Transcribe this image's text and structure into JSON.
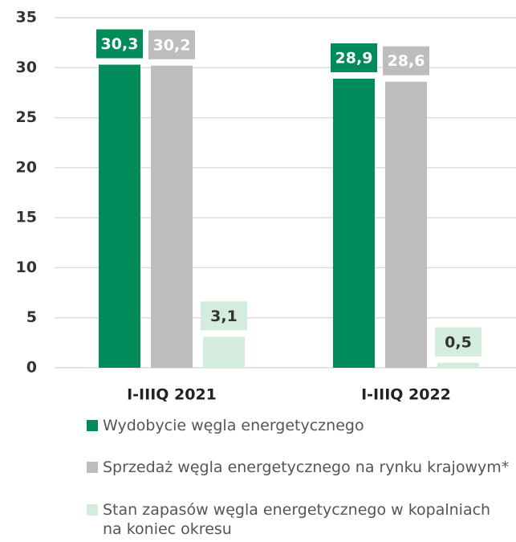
{
  "chart_data": {
    "type": "bar",
    "categories": [
      "I-IIIQ 2021",
      "I-IIIQ 2022"
    ],
    "series": [
      {
        "name": "Wydobycie węgla energetycznego",
        "color": "#008c5a",
        "values": [
          30.3,
          28.9
        ],
        "value_labels": [
          "30,3",
          "28,9"
        ]
      },
      {
        "name": "Sprzedaż węgla energetycznego na rynku krajowym*",
        "color": "#bdbdbd",
        "values": [
          30.2,
          28.6
        ],
        "value_labels": [
          "30,2",
          "28,6"
        ]
      },
      {
        "name": "Stan zapasów węgla energetycznego w kopalniach na koniec okresu",
        "color": "#d4ecdd",
        "values": [
          3.1,
          0.5
        ],
        "value_labels": [
          "3,1",
          "0,5"
        ]
      }
    ],
    "ylim": [
      0,
      35
    ],
    "yticks": [
      0,
      5,
      10,
      15,
      20,
      25,
      30,
      35
    ],
    "grid": true
  }
}
